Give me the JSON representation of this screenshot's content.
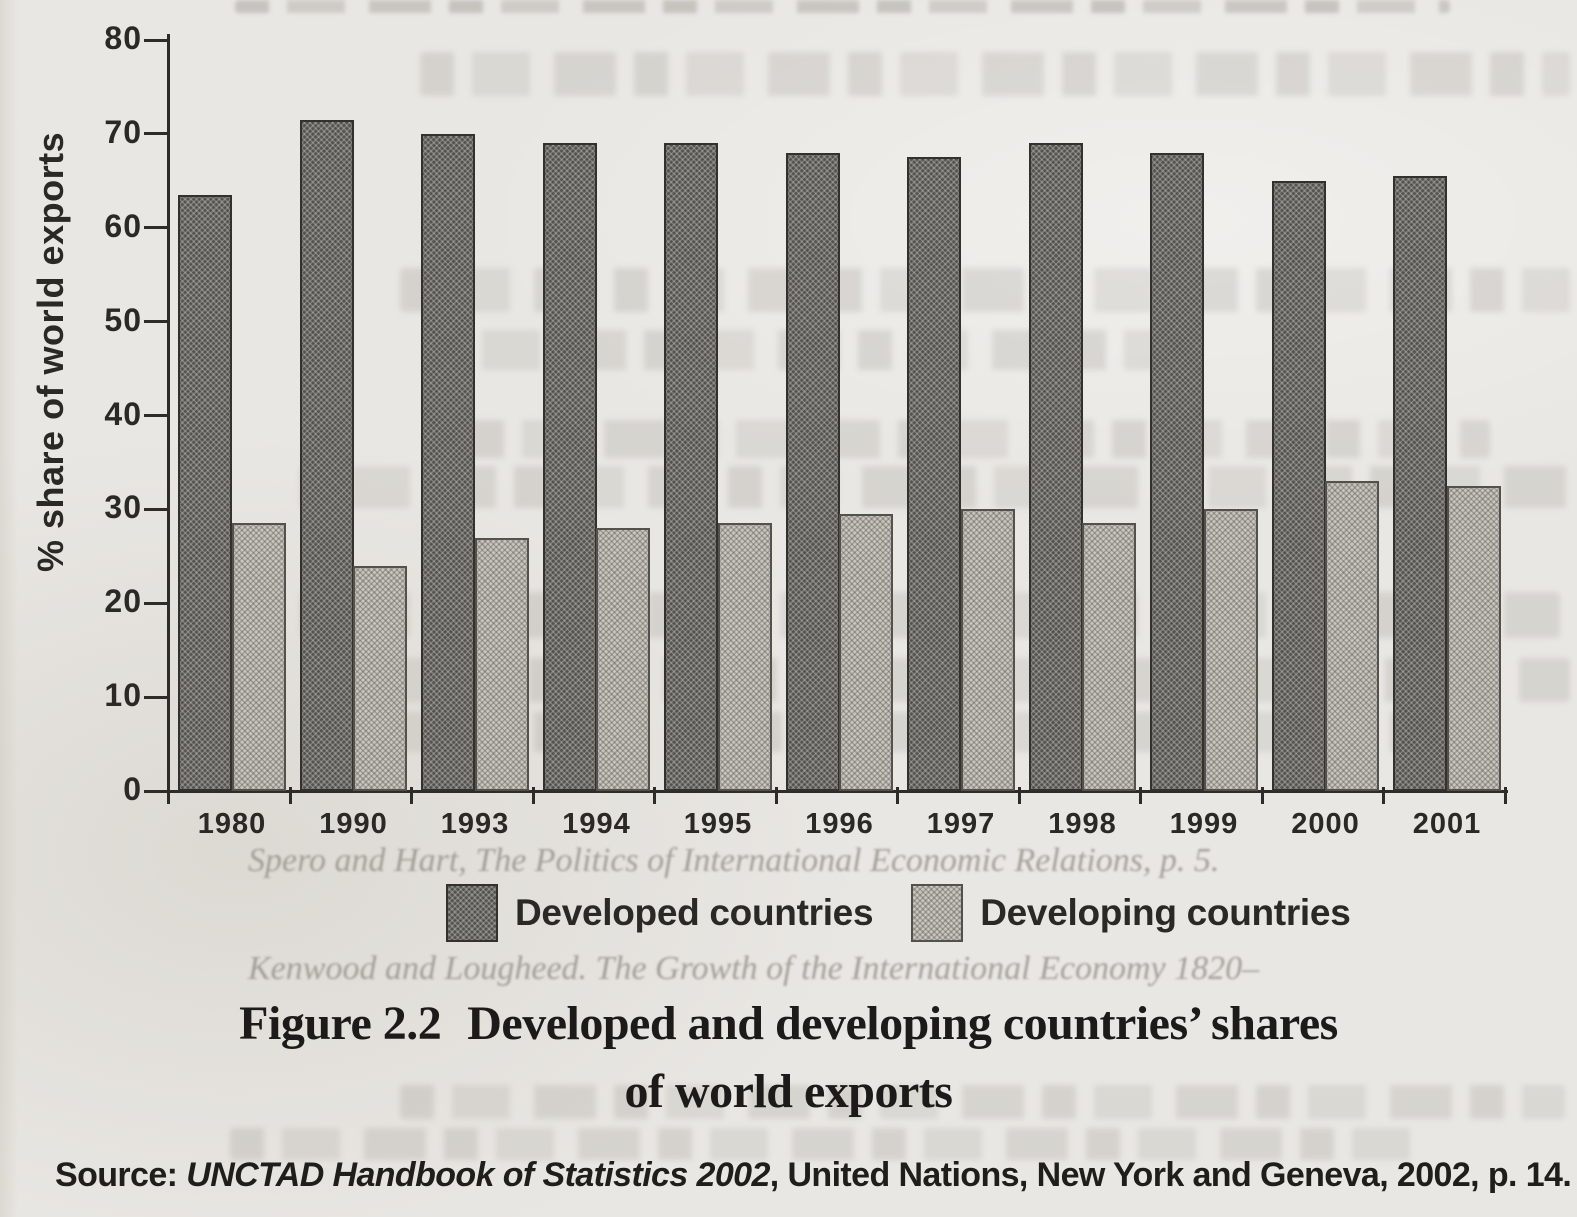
{
  "chart_data": {
    "type": "bar",
    "title": "Developed and developing countries' shares of world exports",
    "xlabel": "",
    "ylabel": "% share of world exports",
    "ylim": [
      0,
      80
    ],
    "yticks": [
      0,
      10,
      20,
      30,
      40,
      50,
      60,
      70,
      80
    ],
    "grid": false,
    "legend_position": "bottom",
    "categories": [
      "1980",
      "1990",
      "1993",
      "1994",
      "1995",
      "1996",
      "1997",
      "1998",
      "1999",
      "2000",
      "2001"
    ],
    "series": [
      {
        "name": "Developed countries",
        "color": "#53524e",
        "values": [
          63.5,
          71.5,
          70,
          69,
          69,
          68,
          67.5,
          69,
          68,
          65,
          65.5
        ]
      },
      {
        "name": "Developing countries",
        "color": "#c9c6bf",
        "values": [
          28.5,
          24,
          27,
          28,
          28.5,
          29.5,
          30,
          28.5,
          30,
          33,
          32.5
        ]
      }
    ]
  },
  "caption": {
    "figure_label": "Figure 2.2",
    "line1": "Developed and developing countries’ shares",
    "line2": "of world exports"
  },
  "source": {
    "prefix": "Source: ",
    "title": "UNCTAD Handbook of Statistics 2002",
    "rest": ", United Nations, New York and Geneva, 2002, p. 14."
  },
  "ghost": {
    "ref_line_1": "Spero and Hart, The Politics of International Economic Relations, p. 5.",
    "ref_line_2": "Kenwood and Lougheed. The Growth of the International Economy 1820–"
  },
  "colors": {
    "bar_dark": "#53524e",
    "bar_light": "#c9c6bf",
    "axis": "#2e2c29",
    "paper": "#eae8e4"
  }
}
